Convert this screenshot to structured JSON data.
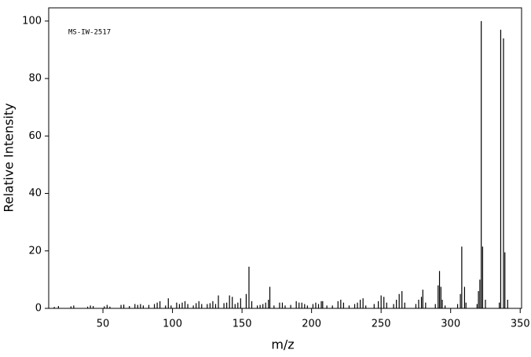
{
  "chart_data": {
    "type": "stem",
    "annotation": "MS-IW-2517",
    "xlabel": "m/z",
    "ylabel": "Relative Intensity",
    "xlim": [
      11,
      351
    ],
    "ylim": [
      0,
      104.6
    ],
    "xticks": [
      50,
      100,
      150,
      200,
      250,
      300,
      350
    ],
    "yticks": [
      0,
      20,
      40,
      60,
      80,
      100
    ],
    "color": "#000000",
    "x": [
      15,
      18,
      27,
      29,
      39,
      41,
      43,
      51,
      53,
      55,
      63,
      65,
      69,
      73,
      75,
      77,
      79,
      83,
      87,
      89,
      91,
      95,
      97,
      99,
      103,
      105,
      107,
      109,
      111,
      115,
      117,
      119,
      121,
      125,
      127,
      129,
      131,
      133,
      137,
      139,
      141,
      143,
      145,
      147,
      149,
      153,
      155,
      157,
      161,
      163,
      165,
      167,
      169,
      170,
      173,
      177,
      179,
      181,
      185,
      189,
      191,
      193,
      195,
      197,
      201,
      203,
      205,
      207,
      208,
      211,
      215,
      219,
      221,
      223,
      227,
      231,
      233,
      235,
      237,
      239,
      245,
      248,
      250,
      252,
      254,
      259,
      261,
      263,
      265,
      267,
      275,
      277,
      279,
      280,
      282,
      289,
      291,
      292,
      293,
      294,
      296,
      305,
      307,
      308,
      310,
      311,
      319,
      320,
      321,
      322,
      323,
      325,
      335,
      336,
      338,
      339,
      341
    ],
    "values": [
      0.5,
      0.8,
      0.7,
      1,
      0.6,
      1,
      0.8,
      0.7,
      1.2,
      0.6,
      1.2,
      1.3,
      0.8,
      1.5,
      1.2,
      1.5,
      1,
      1.2,
      1.5,
      2,
      2.5,
      1,
      3.5,
      1,
      2,
      1.5,
      2,
      2.5,
      1.5,
      1,
      1.8,
      2.5,
      1.5,
      1.5,
      1.8,
      2.5,
      1.5,
      4.5,
      1.8,
      2,
      4.5,
      4,
      1.5,
      2,
      3.5,
      5,
      14.5,
      2.5,
      1,
      1.2,
      1.5,
      2,
      3,
      7.5,
      1,
      2,
      2,
      1,
      1.2,
      2.5,
      2,
      2,
      1.5,
      1,
      1.5,
      2,
      1.5,
      2.5,
      2.5,
      1,
      1,
      2.5,
      3,
      2,
      1,
      1.5,
      2,
      3,
      3.5,
      1,
      1.5,
      2.5,
      4.5,
      4,
      2,
      1.5,
      3,
      5,
      6,
      2,
      1.5,
      3,
      4,
      6.5,
      2,
      1.5,
      8,
      13,
      7.5,
      3,
      1,
      1.5,
      5,
      21.5,
      7.5,
      2,
      1.5,
      6,
      10,
      100,
      21.5,
      3,
      2,
      97,
      94,
      19.5,
      3
    ]
  }
}
